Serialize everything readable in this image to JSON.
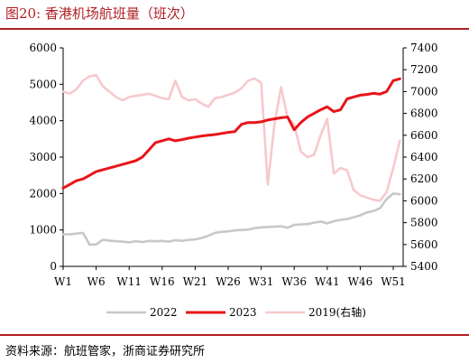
{
  "header": {
    "title": "图20:   香港机场航班量（班次）"
  },
  "footer": {
    "source": "资料来源：航班管家，浙商证券研究所"
  },
  "chart_data": {
    "type": "line",
    "title": "香港机场航班量（班次）",
    "x_ticks": [
      "W1",
      "W6",
      "W11",
      "W16",
      "W21",
      "W26",
      "W31",
      "W36",
      "W41",
      "W46",
      "W51"
    ],
    "x_tick_weeks": [
      1,
      6,
      11,
      16,
      21,
      26,
      31,
      36,
      41,
      46,
      51
    ],
    "left_axis": {
      "ylim": [
        0,
        6000
      ],
      "ticks": [
        "0",
        "1000",
        "2000",
        "3000",
        "4000",
        "5000",
        "6000"
      ]
    },
    "right_axis": {
      "ylim": [
        5400,
        7400
      ],
      "ticks": [
        "5400",
        "5600",
        "5800",
        "6000",
        "6200",
        "6400",
        "6600",
        "6800",
        "7000",
        "7200",
        "7400"
      ]
    },
    "grid": false,
    "legend_position": "bottom",
    "series": [
      {
        "name": "2022",
        "axis": "left",
        "color": "#c8c8c8",
        "x": [
          1,
          2,
          3,
          4,
          5,
          6,
          7,
          8,
          9,
          10,
          11,
          12,
          13,
          14,
          15,
          16,
          17,
          18,
          19,
          20,
          21,
          22,
          23,
          24,
          25,
          26,
          27,
          28,
          29,
          30,
          31,
          32,
          33,
          34,
          35,
          36,
          37,
          38,
          39,
          40,
          41,
          42,
          43,
          44,
          45,
          46,
          47,
          48,
          49,
          50,
          51,
          52
        ],
        "values": [
          880,
          880,
          900,
          920,
          600,
          600,
          730,
          710,
          690,
          680,
          660,
          690,
          670,
          700,
          690,
          700,
          680,
          720,
          700,
          730,
          740,
          780,
          840,
          920,
          950,
          960,
          990,
          1000,
          1010,
          1050,
          1070,
          1080,
          1090,
          1100,
          1060,
          1140,
          1150,
          1160,
          1200,
          1230,
          1180,
          1240,
          1280,
          1300,
          1350,
          1400,
          1480,
          1520,
          1600,
          1850,
          2000,
          1980
        ]
      },
      {
        "name": "2023",
        "axis": "left",
        "color": "#e8141a",
        "x": [
          1,
          2,
          3,
          4,
          5,
          6,
          7,
          8,
          9,
          10,
          11,
          12,
          13,
          14,
          15,
          16,
          17,
          18,
          19,
          20,
          21,
          22,
          23,
          24,
          25,
          26,
          27,
          28,
          29,
          30,
          31,
          32,
          33,
          34,
          35,
          36,
          37,
          38,
          39,
          40,
          41,
          42,
          43,
          44,
          45,
          46,
          47,
          48,
          49,
          50,
          51,
          52
        ],
        "values": [
          2150,
          2250,
          2350,
          2400,
          2500,
          2600,
          2650,
          2700,
          2750,
          2800,
          2850,
          2900,
          3000,
          3200,
          3400,
          3450,
          3500,
          3450,
          3480,
          3520,
          3550,
          3580,
          3600,
          3620,
          3650,
          3680,
          3700,
          3900,
          3950,
          3950,
          3970,
          4020,
          4050,
          4080,
          4100,
          3750,
          3950,
          4100,
          4200,
          4300,
          4380,
          4250,
          4300,
          4600,
          4650,
          4700,
          4720,
          4750,
          4730,
          4800,
          5100,
          5150
        ]
      },
      {
        "name": "2019(右轴)",
        "axis": "right",
        "color": "#f7c8cc",
        "x": [
          1,
          2,
          3,
          4,
          5,
          6,
          7,
          8,
          9,
          10,
          11,
          12,
          13,
          14,
          15,
          16,
          17,
          18,
          19,
          20,
          21,
          22,
          23,
          24,
          25,
          26,
          27,
          28,
          29,
          30,
          31,
          32,
          33,
          34,
          35,
          36,
          37,
          38,
          39,
          40,
          41,
          42,
          43,
          44,
          45,
          46,
          47,
          48,
          49,
          50,
          51,
          52
        ],
        "values": [
          7000,
          6980,
          7020,
          7100,
          7140,
          7150,
          7050,
          7000,
          6950,
          6920,
          6950,
          6960,
          6970,
          6980,
          6960,
          6940,
          6930,
          7100,
          6950,
          6920,
          6930,
          6890,
          6860,
          6940,
          6950,
          6970,
          6990,
          7030,
          7100,
          7120,
          7080,
          6150,
          6700,
          7040,
          6760,
          6700,
          6450,
          6400,
          6420,
          6600,
          6750,
          6250,
          6300,
          6280,
          6100,
          6050,
          6030,
          6010,
          6000,
          6080,
          6300,
          6550
        ]
      }
    ]
  }
}
